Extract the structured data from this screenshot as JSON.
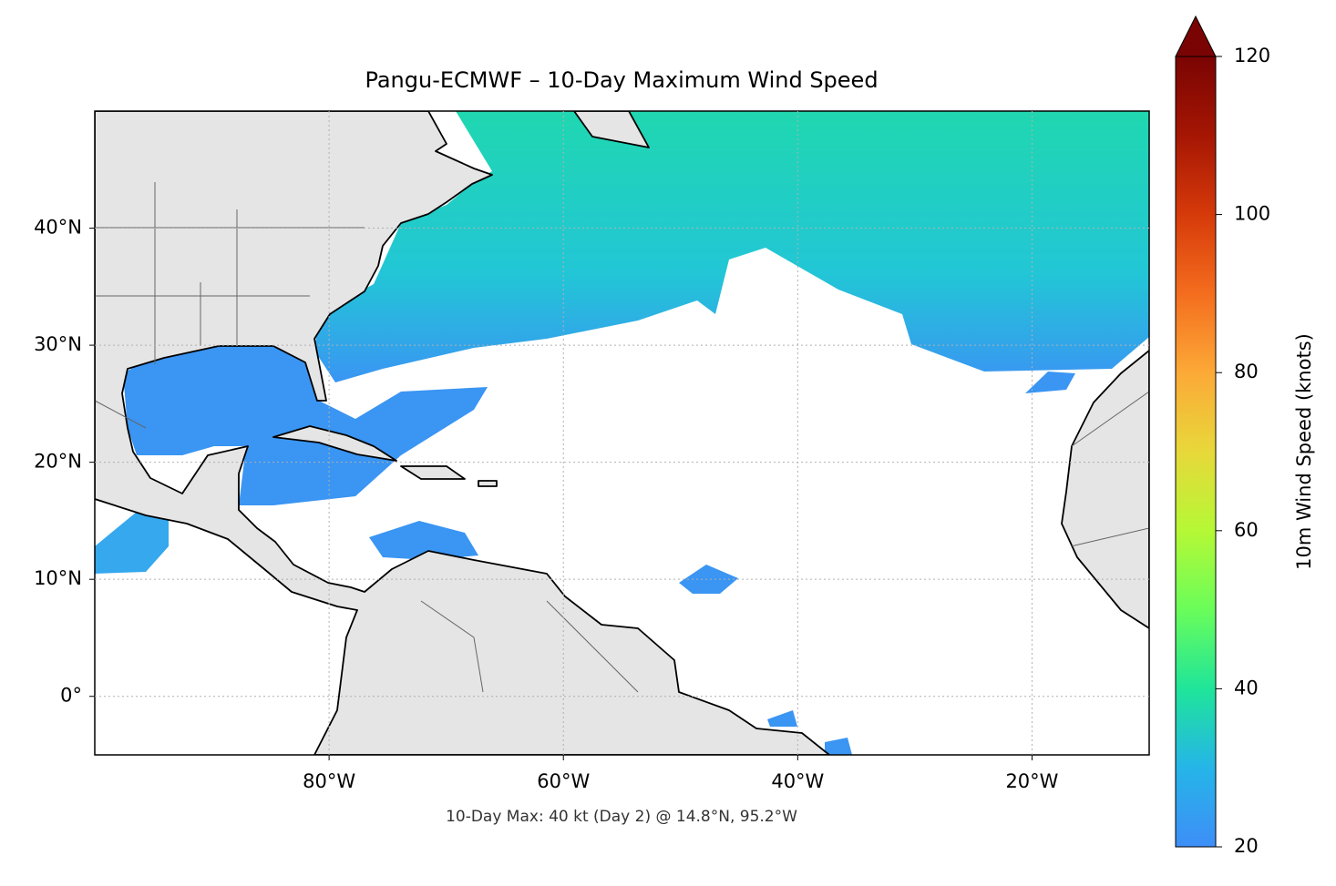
{
  "chart_data": {
    "type": "map",
    "title": "Pangu-ECMWF – 10-Day Maximum Wind Speed",
    "annotation": "10-Day Max: 40 kt (Day 2) @ 14.8°N, 95.2°W",
    "xlim": [
      -100,
      -10
    ],
    "ylim": [
      -5,
      50
    ],
    "xticks": [
      {
        "value": -80,
        "label": "80°W"
      },
      {
        "value": -60,
        "label": "60°W"
      },
      {
        "value": -40,
        "label": "40°W"
      },
      {
        "value": -20,
        "label": "20°W"
      }
    ],
    "yticks": [
      {
        "value": 0,
        "label": "0°"
      },
      {
        "value": 10,
        "label": "10°N"
      },
      {
        "value": 20,
        "label": "20°N"
      },
      {
        "value": 30,
        "label": "30°N"
      },
      {
        "value": 40,
        "label": "40°N"
      }
    ],
    "grid": true,
    "colorbar": {
      "label": "10m Wind Speed (knots)",
      "lim": [
        20,
        120
      ],
      "ticks": [
        20,
        40,
        60,
        80,
        100,
        120
      ]
    }
  }
}
